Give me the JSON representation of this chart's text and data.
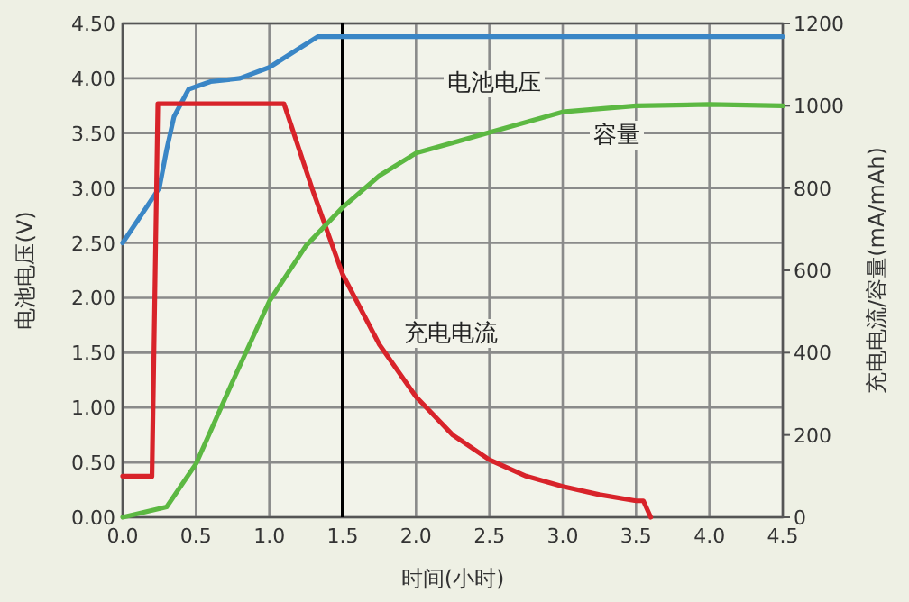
{
  "chart_data": {
    "type": "line",
    "xlabel": "时间(小时)",
    "ylabel": "电池电压(V)",
    "y2label": "充电电流/容量(mA/mAh)",
    "xlim": [
      0,
      4.5
    ],
    "ylim": [
      0,
      4.5
    ],
    "y2lim": [
      0,
      1200
    ],
    "xticks": [
      {
        "value": 0,
        "label": "0.0"
      },
      {
        "value": 0.5,
        "label": "0.5"
      },
      {
        "value": 1,
        "label": "1.0"
      },
      {
        "value": 1.5,
        "label": "1.5"
      },
      {
        "value": 2,
        "label": "2.0"
      },
      {
        "value": 2.5,
        "label": "2.5"
      },
      {
        "value": 3,
        "label": "3.0"
      },
      {
        "value": 3.5,
        "label": "3.5"
      },
      {
        "value": 4,
        "label": "4.0"
      },
      {
        "value": 4.5,
        "label": "4.5"
      }
    ],
    "yticks": [
      {
        "value": 0,
        "label": "0.00"
      },
      {
        "value": 0.5,
        "label": "0.50"
      },
      {
        "value": 1,
        "label": "1.00"
      },
      {
        "value": 1.5,
        "label": "1.50"
      },
      {
        "value": 2,
        "label": "2.00"
      },
      {
        "value": 2.5,
        "label": "2.50"
      },
      {
        "value": 3,
        "label": "3.00"
      },
      {
        "value": 3.5,
        "label": "3.50"
      },
      {
        "value": 4,
        "label": "4.00"
      },
      {
        "value": 4.5,
        "label": "4.50"
      }
    ],
    "y2ticks": [
      0,
      200,
      400,
      600,
      800,
      1000,
      1200
    ],
    "grid": true,
    "series": [
      {
        "color": "#3a86c6",
        "axis": "y",
        "x": [
          0,
          0.1,
          0.25,
          0.3,
          0.35,
          0.45,
          0.6,
          0.8,
          1.0,
          1.2,
          1.33,
          2,
          3,
          4,
          4.5
        ],
        "values": [
          2.5,
          2.7,
          3.0,
          3.35,
          3.65,
          3.9,
          3.97,
          4.0,
          4.1,
          4.27,
          4.38,
          4.38,
          4.38,
          4.38,
          4.38
        ]
      },
      {
        "color": "#d8232a",
        "axis": "y2",
        "x": [
          0,
          0.2,
          0.24,
          1.1,
          1.3,
          1.5,
          1.75,
          2.0,
          2.25,
          2.5,
          2.75,
          3.0,
          3.25,
          3.5,
          3.55,
          3.6
        ],
        "values": [
          100,
          100,
          1005,
          1005,
          790,
          590,
          420,
          293,
          200,
          140,
          100,
          75,
          55,
          40,
          40,
          0
        ]
      },
      {
        "color": "#5cb842",
        "axis": "y2",
        "x": [
          0,
          0.3,
          0.5,
          0.75,
          1.0,
          1.25,
          1.5,
          1.75,
          2.0,
          2.5,
          3.0,
          3.5,
          4.0,
          4.5
        ],
        "values": [
          0,
          25,
          130,
          330,
          525,
          660,
          753,
          830,
          885,
          935,
          985,
          1000,
          1003,
          1000
        ]
      }
    ],
    "ref_lines": [
      {
        "axis": "x",
        "value": 1.5,
        "color": "#000000"
      }
    ],
    "annotations": [
      "电池电压",
      "容量",
      "充电电流"
    ]
  }
}
